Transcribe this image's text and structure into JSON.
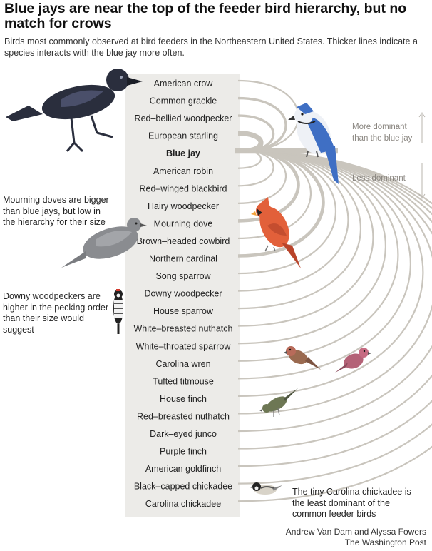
{
  "header": {
    "title": "Blue jays are near the top of the feeder bird hierarchy, but no match for crows",
    "subtitle": "Birds most commonly observed at bird feeders in the Northeastern United States. Thicker lines indicate a species interacts with the blue jay more often."
  },
  "annotations": {
    "mourning_dove": "Mourning doves are bigger than blue jays, but low in the hierarchy for their size",
    "downy_woodpecker": "Downy woodpeckers are higher in the pecking order than their size would suggest",
    "carolina_chickadee": "The tiny Carolina chickadee is the least dominant of the common feeder birds",
    "more_dominant": "More dominant than the blue jay",
    "less_dominant": "Less dominant"
  },
  "credit": {
    "line1": "Andrew Van Dam and Alyssa Fowers",
    "line2": "The Washington Post"
  },
  "colors": {
    "panel": "#ecebe8",
    "arc": "#c9c5bd",
    "jay_blue": "#3f6fc4",
    "cardinal": "#e2603a",
    "crow": "#2a2e3d"
  },
  "icons": [
    "american-crow-icon",
    "blue-jay-icon",
    "mourning-dove-icon",
    "downy-woodpecker-icon",
    "northern-cardinal-icon",
    "house-finch-icon",
    "purple-finch-icon",
    "american-goldfinch-icon",
    "carolina-chickadee-icon"
  ],
  "chart_data": {
    "type": "arc",
    "center": "Blue jay",
    "order": "dominance rank, most dominant at top",
    "species": [
      {
        "name": "American crow",
        "relation": "more dominant",
        "weight": 1
      },
      {
        "name": "Common grackle",
        "relation": "more dominant",
        "weight": 2
      },
      {
        "name": "Red–bellied woodpecker",
        "relation": "more dominant",
        "weight": 2
      },
      {
        "name": "European starling",
        "relation": "more dominant",
        "weight": 5
      },
      {
        "name": "Blue jay",
        "relation": "reference",
        "weight": 0
      },
      {
        "name": "American robin",
        "relation": "less dominant",
        "weight": 1
      },
      {
        "name": "Red–winged blackbird",
        "relation": "less dominant",
        "weight": 1
      },
      {
        "name": "Hairy woodpecker",
        "relation": "less dominant",
        "weight": 1
      },
      {
        "name": "Mourning dove",
        "relation": "less dominant",
        "weight": 3
      },
      {
        "name": "Brown–headed cowbird",
        "relation": "less dominant",
        "weight": 1
      },
      {
        "name": "Northern cardinal",
        "relation": "less dominant",
        "weight": 3
      },
      {
        "name": "Song sparrow",
        "relation": "less dominant",
        "weight": 1
      },
      {
        "name": "Downy woodpecker",
        "relation": "less dominant",
        "weight": 1
      },
      {
        "name": "House sparrow",
        "relation": "less dominant",
        "weight": 1
      },
      {
        "name": "White–breasted nuthatch",
        "relation": "less dominant",
        "weight": 1
      },
      {
        "name": "White–throated sparrow",
        "relation": "less dominant",
        "weight": 1
      },
      {
        "name": "Carolina wren",
        "relation": "less dominant",
        "weight": 1
      },
      {
        "name": "Tufted titmouse",
        "relation": "less dominant",
        "weight": 1
      },
      {
        "name": "House finch",
        "relation": "less dominant",
        "weight": 1
      },
      {
        "name": "Red–breasted nuthatch",
        "relation": "less dominant",
        "weight": 1
      },
      {
        "name": "Dark–eyed junco",
        "relation": "less dominant",
        "weight": 1
      },
      {
        "name": "Purple finch",
        "relation": "less dominant",
        "weight": 1
      },
      {
        "name": "American goldfinch",
        "relation": "less dominant",
        "weight": 1
      },
      {
        "name": "Black–capped chickadee",
        "relation": "less dominant",
        "weight": 1
      },
      {
        "name": "Carolina chickadee",
        "relation": "less dominant",
        "weight": 1
      }
    ]
  }
}
